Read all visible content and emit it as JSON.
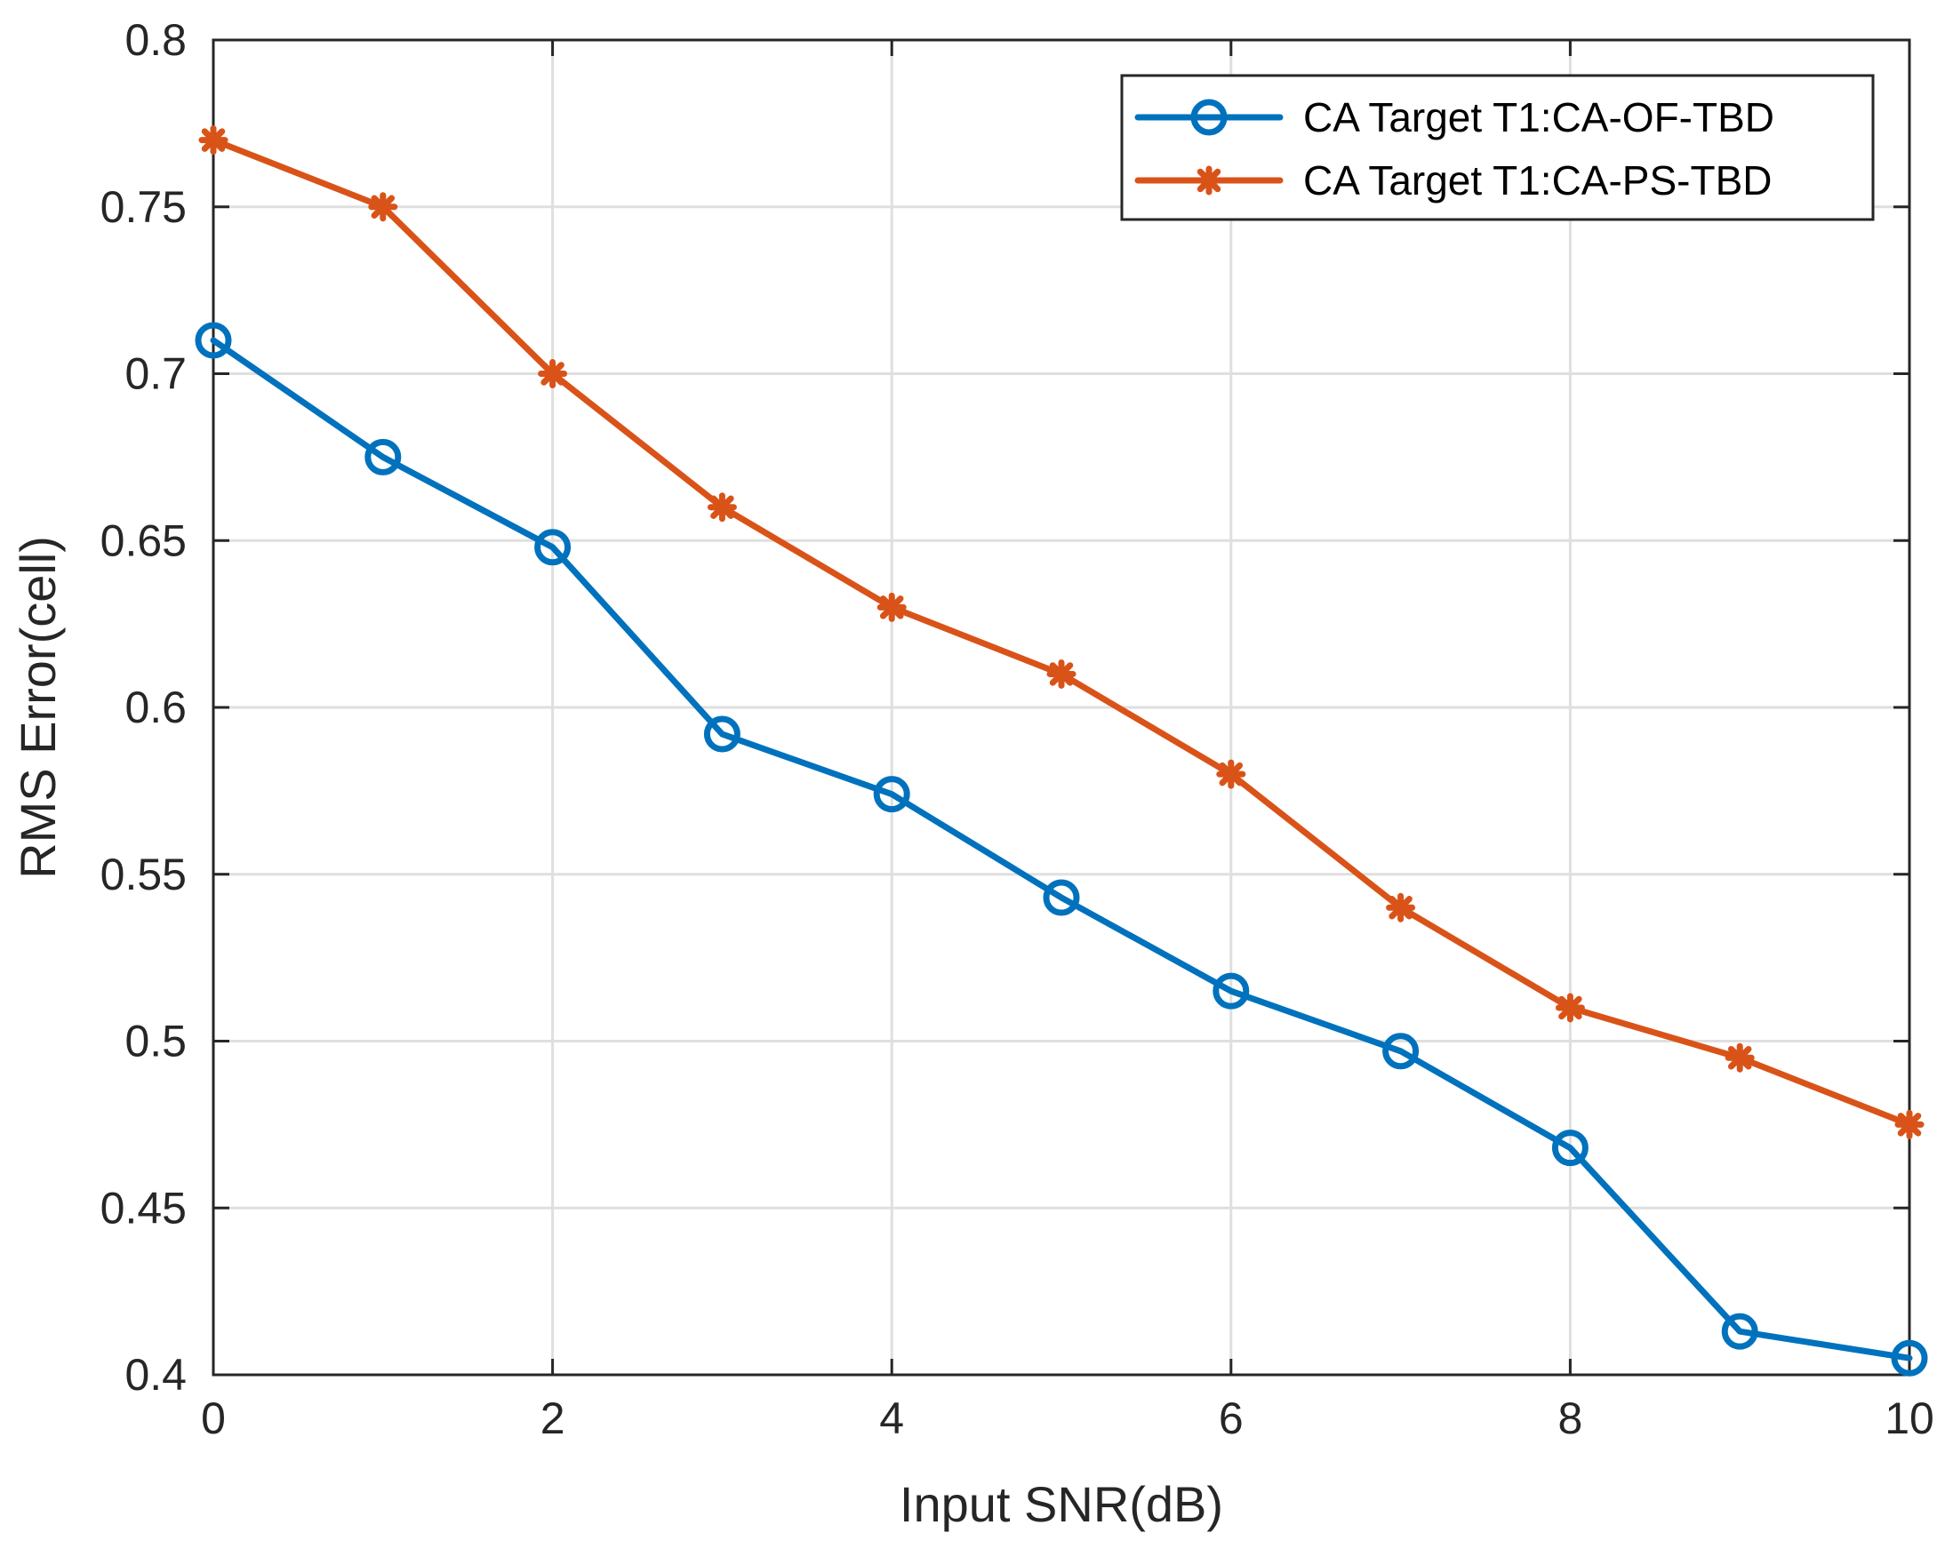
{
  "chart_data": {
    "type": "line",
    "title": "",
    "xlabel": "Input SNR(dB)",
    "ylabel": "RMS Error(cell)",
    "xlim": [
      0,
      10
    ],
    "ylim": [
      0.4,
      0.8
    ],
    "xticks": [
      0,
      2,
      4,
      6,
      8,
      10
    ],
    "xtick_labels": [
      "0",
      "2",
      "4",
      "6",
      "8",
      "10"
    ],
    "yticks": [
      0.4,
      0.45,
      0.5,
      0.55,
      0.6,
      0.65,
      0.7,
      0.75,
      0.8
    ],
    "ytick_labels": [
      "0.4",
      "0.45",
      "0.5",
      "0.55",
      "0.6",
      "0.65",
      "0.7",
      "0.75",
      "0.8"
    ],
    "grid": true,
    "legend_position": "top-right",
    "x": [
      0,
      1,
      2,
      3,
      4,
      5,
      6,
      7,
      8,
      9,
      10
    ],
    "series": [
      {
        "name": "CA Target T1:CA-OF-TBD",
        "color": "#0072bd",
        "marker": "circle",
        "values": [
          0.71,
          0.675,
          0.648,
          0.592,
          0.574,
          0.543,
          0.515,
          0.497,
          0.468,
          0.413,
          0.405
        ]
      },
      {
        "name": "CA Target T1:CA-PS-TBD",
        "color": "#d95319",
        "marker": "asterisk",
        "values": [
          0.77,
          0.75,
          0.7,
          0.66,
          0.63,
          0.61,
          0.58,
          0.54,
          0.51,
          0.495,
          0.475
        ]
      }
    ]
  }
}
